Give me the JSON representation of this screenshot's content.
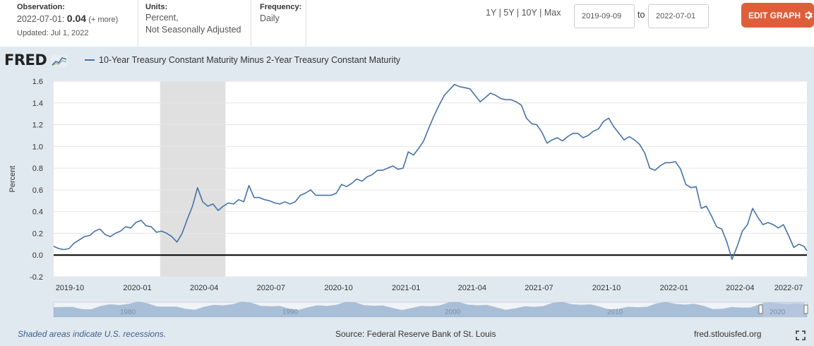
{
  "header": {
    "observation_label": "Observation:",
    "observation_date": "2022-07-01:",
    "observation_value": "0.04",
    "observation_more": "(+ more)",
    "updated": "Updated: Jul 1, 2022",
    "units_label": "Units:",
    "units_line1": "Percent,",
    "units_line2": "Not Seasonally Adjusted",
    "frequency_label": "Frequency:",
    "frequency_value": "Daily",
    "range_1y": "1Y",
    "range_5y": "5Y",
    "range_10y": "10Y",
    "range_max": "Max",
    "range_sep": "|",
    "start_date": "2019-09-09",
    "to_label": "to",
    "end_date": "2022-07-01",
    "edit_button": "EDIT GRAPH",
    "edit_icon": "gear-icon",
    "accent_color": "#df5e3a"
  },
  "logo": {
    "text": "FRED",
    "icon": "chart-line-icon"
  },
  "footer": {
    "recession_note": "Shaded areas indicate U.S. recessions.",
    "source": "Source: Federal Reserve Bank of St. Louis",
    "url": "fred.stlouisfed.org",
    "expand_icon": "expand-icon"
  },
  "navigator": {
    "labels": [
      "1980",
      "1990",
      "2000",
      "2010",
      "2020"
    ]
  },
  "chart_data": {
    "type": "line",
    "title": "",
    "ylabel": "Percent",
    "ylim": [
      -0.2,
      1.6
    ],
    "yticks": [
      "1.6",
      "1.4",
      "1.2",
      "1.0",
      "0.8",
      "0.6",
      "0.4",
      "0.2",
      "0.0",
      "-0.2"
    ],
    "xlim": [
      "2019-09-09",
      "2022-07-01"
    ],
    "xticks": [
      "2019-10",
      "2020-01",
      "2020-04",
      "2020-07",
      "2020-10",
      "2021-01",
      "2021-04",
      "2021-07",
      "2021-10",
      "2022-01",
      "2022-04",
      "2022-07"
    ],
    "series_color": "#4572a7",
    "recession": {
      "start": "2020-02-01",
      "end": "2020-04-30",
      "color": "#e0e0e0"
    },
    "zero_line": true,
    "grid": true,
    "series": [
      {
        "name": "10-Year Treasury Constant Maturity Minus 2-Year Treasury Constant Maturity",
        "x": [
          "2019-09-09",
          "2019-09-16",
          "2019-09-23",
          "2019-09-30",
          "2019-10-07",
          "2019-10-14",
          "2019-10-21",
          "2019-10-28",
          "2019-11-04",
          "2019-11-11",
          "2019-11-18",
          "2019-11-25",
          "2019-12-02",
          "2019-12-09",
          "2019-12-16",
          "2019-12-23",
          "2019-12-30",
          "2020-01-06",
          "2020-01-13",
          "2020-01-20",
          "2020-01-27",
          "2020-02-03",
          "2020-02-10",
          "2020-02-17",
          "2020-02-24",
          "2020-03-02",
          "2020-03-09",
          "2020-03-16",
          "2020-03-23",
          "2020-03-30",
          "2020-04-06",
          "2020-04-13",
          "2020-04-20",
          "2020-04-27",
          "2020-05-04",
          "2020-05-11",
          "2020-05-18",
          "2020-05-25",
          "2020-06-01",
          "2020-06-08",
          "2020-06-15",
          "2020-06-22",
          "2020-06-29",
          "2020-07-06",
          "2020-07-13",
          "2020-07-20",
          "2020-07-27",
          "2020-08-03",
          "2020-08-10",
          "2020-08-17",
          "2020-08-24",
          "2020-08-31",
          "2020-09-07",
          "2020-09-14",
          "2020-09-21",
          "2020-09-28",
          "2020-10-05",
          "2020-10-12",
          "2020-10-19",
          "2020-10-26",
          "2020-11-02",
          "2020-11-09",
          "2020-11-16",
          "2020-11-23",
          "2020-11-30",
          "2020-12-07",
          "2020-12-14",
          "2020-12-21",
          "2020-12-28",
          "2021-01-04",
          "2021-01-11",
          "2021-01-18",
          "2021-01-25",
          "2021-02-01",
          "2021-02-08",
          "2021-02-15",
          "2021-02-22",
          "2021-03-01",
          "2021-03-08",
          "2021-03-15",
          "2021-03-22",
          "2021-03-29",
          "2021-04-05",
          "2021-04-12",
          "2021-04-19",
          "2021-04-26",
          "2021-05-03",
          "2021-05-10",
          "2021-05-17",
          "2021-05-24",
          "2021-05-31",
          "2021-06-07",
          "2021-06-14",
          "2021-06-21",
          "2021-06-28",
          "2021-07-05",
          "2021-07-12",
          "2021-07-19",
          "2021-07-26",
          "2021-08-02",
          "2021-08-09",
          "2021-08-16",
          "2021-08-23",
          "2021-08-30",
          "2021-09-06",
          "2021-09-13",
          "2021-09-20",
          "2021-09-27",
          "2021-10-04",
          "2021-10-11",
          "2021-10-18",
          "2021-10-25",
          "2021-11-01",
          "2021-11-08",
          "2021-11-15",
          "2021-11-22",
          "2021-11-29",
          "2021-12-06",
          "2021-12-13",
          "2021-12-20",
          "2021-12-27",
          "2022-01-03",
          "2022-01-10",
          "2022-01-17",
          "2022-01-24",
          "2022-01-31",
          "2022-02-07",
          "2022-02-14",
          "2022-02-21",
          "2022-02-28",
          "2022-03-07",
          "2022-03-14",
          "2022-03-21",
          "2022-03-28",
          "2022-04-04",
          "2022-04-11",
          "2022-04-18",
          "2022-04-25",
          "2022-05-02",
          "2022-05-09",
          "2022-05-16",
          "2022-05-23",
          "2022-05-30",
          "2022-06-06",
          "2022-06-13",
          "2022-06-20",
          "2022-06-27",
          "2022-07-01"
        ],
        "values": [
          0.08,
          0.06,
          0.05,
          0.06,
          0.11,
          0.14,
          0.17,
          0.18,
          0.22,
          0.24,
          0.19,
          0.17,
          0.2,
          0.22,
          0.26,
          0.25,
          0.3,
          0.32,
          0.27,
          0.26,
          0.21,
          0.22,
          0.2,
          0.17,
          0.12,
          0.2,
          0.33,
          0.45,
          0.62,
          0.49,
          0.45,
          0.47,
          0.41,
          0.45,
          0.48,
          0.47,
          0.51,
          0.49,
          0.64,
          0.53,
          0.53,
          0.51,
          0.5,
          0.48,
          0.47,
          0.49,
          0.47,
          0.49,
          0.55,
          0.57,
          0.6,
          0.55,
          0.55,
          0.55,
          0.55,
          0.57,
          0.65,
          0.63,
          0.66,
          0.7,
          0.68,
          0.72,
          0.74,
          0.78,
          0.78,
          0.8,
          0.82,
          0.79,
          0.8,
          0.95,
          0.92,
          0.98,
          1.05,
          1.17,
          1.28,
          1.38,
          1.47,
          1.52,
          1.57,
          1.55,
          1.54,
          1.53,
          1.47,
          1.41,
          1.45,
          1.49,
          1.47,
          1.44,
          1.43,
          1.43,
          1.41,
          1.38,
          1.26,
          1.21,
          1.2,
          1.13,
          1.03,
          1.06,
          1.08,
          1.05,
          1.09,
          1.12,
          1.12,
          1.08,
          1.1,
          1.14,
          1.16,
          1.23,
          1.26,
          1.18,
          1.12,
          1.06,
          1.09,
          1.06,
          1.02,
          0.94,
          0.8,
          0.78,
          0.82,
          0.85,
          0.85,
          0.86,
          0.79,
          0.65,
          0.62,
          0.63,
          0.43,
          0.45,
          0.36,
          0.26,
          0.24,
          0.12,
          -0.04,
          0.08,
          0.22,
          0.28,
          0.43,
          0.35,
          0.28,
          0.3,
          0.28,
          0.25,
          0.28,
          0.18,
          0.07,
          0.1,
          0.08,
          0.04
        ]
      }
    ]
  }
}
